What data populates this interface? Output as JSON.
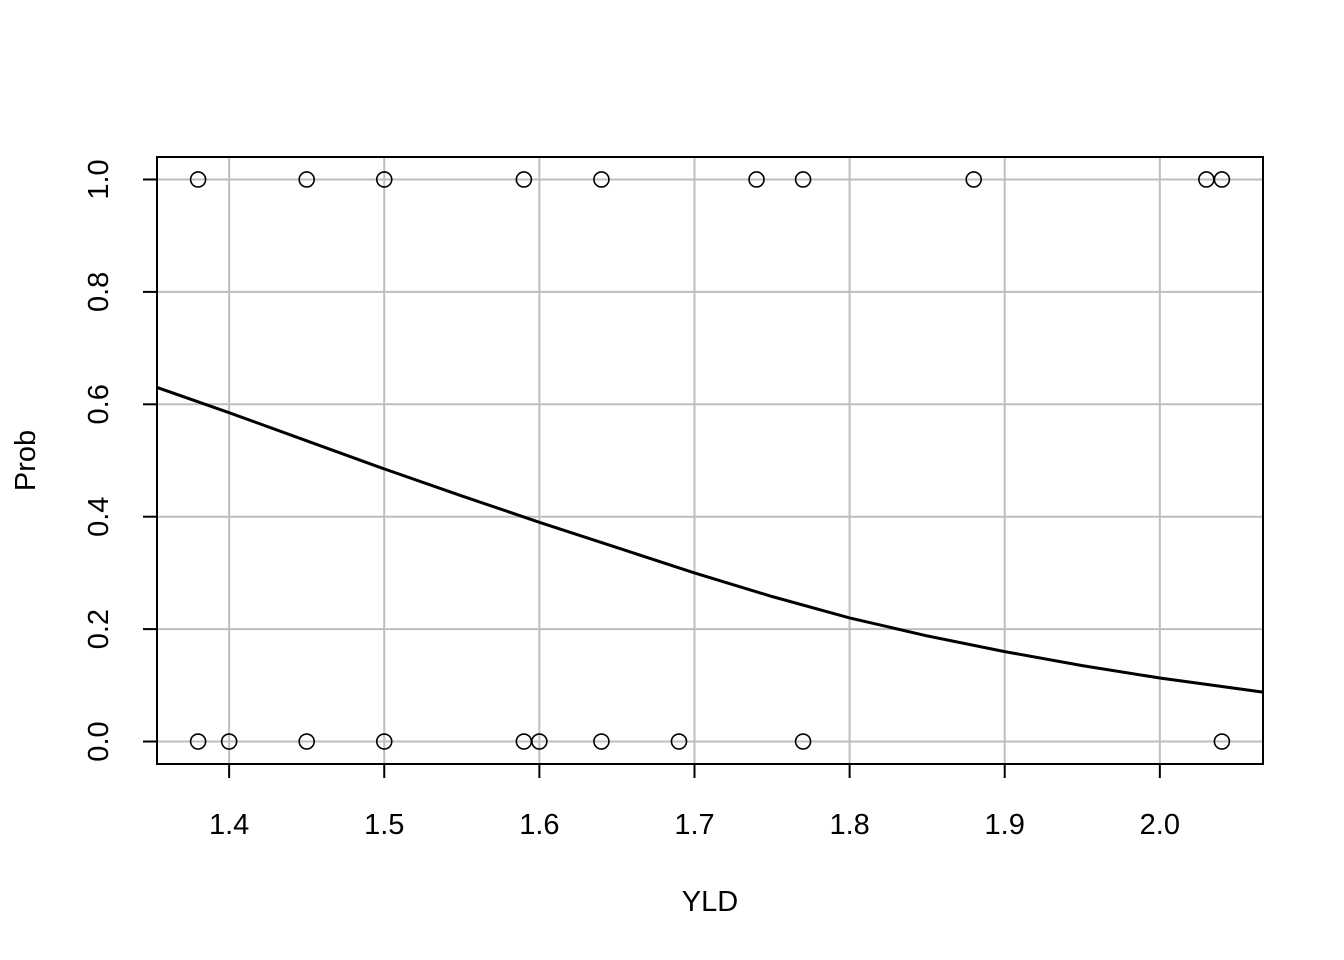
{
  "chart_data": {
    "type": "scatter",
    "title": "",
    "xlabel": "YLD",
    "ylabel": "Prob",
    "xlim": [
      1.3535,
      2.0665
    ],
    "ylim": [
      -0.04,
      1.04
    ],
    "x_ticks": [
      1.4,
      1.5,
      1.6,
      1.7,
      1.8,
      1.9,
      2.0
    ],
    "x_tick_labels": [
      "1.4",
      "1.5",
      "1.6",
      "1.7",
      "1.8",
      "1.9",
      "2.0"
    ],
    "y_ticks": [
      0,
      0.2,
      0.4,
      0.6,
      0.8,
      1.0
    ],
    "y_tick_labels": [
      "0.0",
      "0.2",
      "0.4",
      "0.6",
      "0.8",
      "1.0"
    ],
    "grid": true,
    "series": [
      {
        "type": "scatter",
        "marker": "open-circle",
        "points": [
          {
            "x": 1.38,
            "y": 1
          },
          {
            "x": 1.45,
            "y": 1
          },
          {
            "x": 1.5,
            "y": 1
          },
          {
            "x": 1.59,
            "y": 1
          },
          {
            "x": 1.64,
            "y": 1
          },
          {
            "x": 1.74,
            "y": 1
          },
          {
            "x": 1.77,
            "y": 1
          },
          {
            "x": 1.88,
            "y": 1
          },
          {
            "x": 2.03,
            "y": 1
          },
          {
            "x": 2.04,
            "y": 1
          },
          {
            "x": 1.38,
            "y": 0
          },
          {
            "x": 1.4,
            "y": 0
          },
          {
            "x": 1.45,
            "y": 0
          },
          {
            "x": 1.5,
            "y": 0
          },
          {
            "x": 1.59,
            "y": 0
          },
          {
            "x": 1.6,
            "y": 0
          },
          {
            "x": 1.64,
            "y": 0
          },
          {
            "x": 1.69,
            "y": 0
          },
          {
            "x": 1.77,
            "y": 0
          },
          {
            "x": 2.04,
            "y": 0
          }
        ]
      },
      {
        "type": "line",
        "color": "#000000",
        "points": [
          {
            "x": 1.3535,
            "y": 0.63
          },
          {
            "x": 1.4,
            "y": 0.585
          },
          {
            "x": 1.45,
            "y": 0.535
          },
          {
            "x": 1.5,
            "y": 0.485
          },
          {
            "x": 1.55,
            "y": 0.437
          },
          {
            "x": 1.6,
            "y": 0.39
          },
          {
            "x": 1.65,
            "y": 0.345
          },
          {
            "x": 1.7,
            "y": 0.3
          },
          {
            "x": 1.75,
            "y": 0.258
          },
          {
            "x": 1.8,
            "y": 0.22
          },
          {
            "x": 1.85,
            "y": 0.188
          },
          {
            "x": 1.9,
            "y": 0.16
          },
          {
            "x": 1.95,
            "y": 0.135
          },
          {
            "x": 2.0,
            "y": 0.113
          },
          {
            "x": 2.0665,
            "y": 0.088
          }
        ]
      }
    ]
  }
}
